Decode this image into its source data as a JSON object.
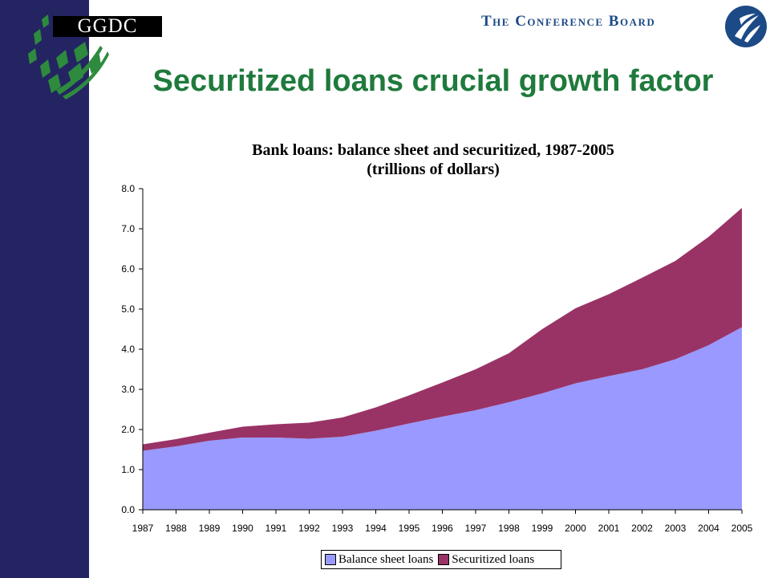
{
  "header": {
    "logo_text": "GGDC",
    "org_name": "The Conference Board"
  },
  "slide": {
    "title": "Securitized loans crucial growth factor"
  },
  "colors": {
    "sidebar": "#242463",
    "title": "#1f7a3c",
    "balance_sheet": "#9999ff",
    "securitized": "#993366"
  },
  "chart_data": {
    "type": "area",
    "stacked": true,
    "title": "Bank loans: balance sheet and securitized, 1987-2005",
    "subtitle": "(trillions of dollars)",
    "xlabel": "",
    "ylabel": "",
    "ylim": [
      0,
      8
    ],
    "yticks": [
      "0.0",
      "1.0",
      "2.0",
      "3.0",
      "4.0",
      "5.0",
      "6.0",
      "7.0",
      "8.0"
    ],
    "categories": [
      "1987",
      "1988",
      "1989",
      "1990",
      "1991",
      "1992",
      "1993",
      "1994",
      "1995",
      "1996",
      "1997",
      "1998",
      "1999",
      "2000",
      "2001",
      "2002",
      "2003",
      "2004",
      "2005"
    ],
    "series": [
      {
        "name": "Balance sheet loans",
        "color": "#9999ff",
        "values": [
          1.47,
          1.58,
          1.72,
          1.8,
          1.8,
          1.77,
          1.82,
          1.97,
          2.15,
          2.32,
          2.48,
          2.68,
          2.9,
          3.15,
          3.33,
          3.5,
          3.75,
          4.1,
          4.55
        ]
      },
      {
        "name": "Securitized loans",
        "color": "#993366",
        "values": [
          0.16,
          0.18,
          0.2,
          0.27,
          0.33,
          0.4,
          0.48,
          0.58,
          0.7,
          0.85,
          1.02,
          1.22,
          1.6,
          1.87,
          2.04,
          2.28,
          2.45,
          2.7,
          2.97
        ]
      }
    ],
    "grid": false,
    "legend_position": "bottom"
  }
}
